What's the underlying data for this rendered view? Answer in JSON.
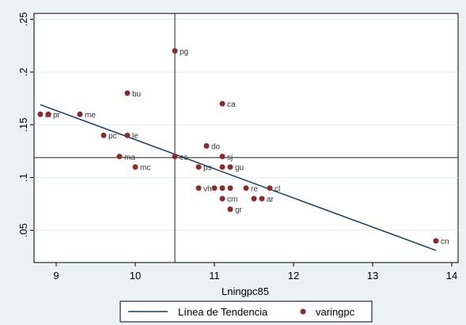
{
  "chart_data": {
    "type": "scatter",
    "xlabel": "Lningpc85",
    "ylabel": "",
    "xlim": [
      8.72,
      14.08
    ],
    "ylim": [
      0.0195,
      0.2555
    ],
    "x_ticks": [
      9,
      10,
      11,
      12,
      13,
      14
    ],
    "x_tick_labels": [
      "9",
      "10",
      "11",
      "12",
      "13",
      "14"
    ],
    "y_ticks": [
      0.05,
      0.1,
      0.15,
      0.2,
      0.25
    ],
    "y_tick_labels": [
      ".05",
      ".1",
      ".15",
      ".2",
      ".25"
    ],
    "grid": "horizontal",
    "legend": "bottom",
    "colors": {
      "points": "#8b2a2a",
      "trend": "#1a3c5e",
      "plot_bg": "#ffffff",
      "outer_bg": "#eaf2f3",
      "grid": "#e4ecee"
    },
    "ref_lines": {
      "x": 10.5,
      "y": 0.119
    },
    "trend_line": {
      "name": "Línea de Tendencia",
      "x": [
        8.8,
        13.8
      ],
      "y": [
        0.169,
        0.031
      ]
    },
    "series": [
      {
        "name": "varingpc",
        "points": [
          {
            "x": 8.8,
            "y": 0.16,
            "label": "ar"
          },
          {
            "x": 8.9,
            "y": 0.16,
            "label": "pr"
          },
          {
            "x": 9.3,
            "y": 0.16,
            "label": "me"
          },
          {
            "x": 9.6,
            "y": 0.14,
            "label": "pc"
          },
          {
            "x": 9.9,
            "y": 0.14,
            "label": "le"
          },
          {
            "x": 9.8,
            "y": 0.12,
            "label": "ma"
          },
          {
            "x": 10.0,
            "y": 0.11,
            "label": "mc"
          },
          {
            "x": 9.9,
            "y": 0.18,
            "label": "bu"
          },
          {
            "x": 10.5,
            "y": 0.22,
            "label": "pg"
          },
          {
            "x": 10.5,
            "y": 0.12,
            "label": "cc"
          },
          {
            "x": 10.8,
            "y": 0.11,
            "label": "ps"
          },
          {
            "x": 10.9,
            "y": 0.13,
            "label": "do"
          },
          {
            "x": 11.1,
            "y": 0.17,
            "label": "ca"
          },
          {
            "x": 11.1,
            "y": 0.12,
            "label": "sj"
          },
          {
            "x": 11.1,
            "y": 0.11,
            "label": ""
          },
          {
            "x": 11.2,
            "y": 0.11,
            "label": "gu"
          },
          {
            "x": 10.8,
            "y": 0.09,
            "label": "vh"
          },
          {
            "x": 11.0,
            "y": 0.09,
            "label": ""
          },
          {
            "x": 11.1,
            "y": 0.09,
            "label": ""
          },
          {
            "x": 11.2,
            "y": 0.09,
            "label": ""
          },
          {
            "x": 11.4,
            "y": 0.09,
            "label": "re"
          },
          {
            "x": 11.7,
            "y": 0.09,
            "label": "cl"
          },
          {
            "x": 11.1,
            "y": 0.08,
            "label": "cm"
          },
          {
            "x": 11.5,
            "y": 0.08,
            "label": ""
          },
          {
            "x": 11.6,
            "y": 0.08,
            "label": "ar"
          },
          {
            "x": 11.2,
            "y": 0.07,
            "label": "gr"
          },
          {
            "x": 13.8,
            "y": 0.04,
            "label": "cn"
          }
        ]
      }
    ]
  }
}
